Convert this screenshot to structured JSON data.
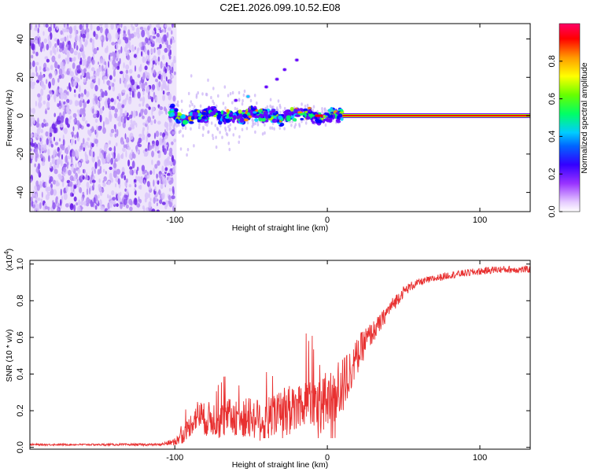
{
  "title": "C2E1.2026.099.10.52.E08",
  "spectrogram": {
    "chart_data": {
      "type": "heatmap",
      "xlabel": "Height of straight line (km)",
      "ylabel": "Frequency (Hz)",
      "xlim": [
        -195,
        133
      ],
      "ylim": [
        -50,
        48
      ],
      "x_ticks": [
        "-100",
        "0",
        "100"
      ],
      "y_ticks": [
        "-40",
        "-20",
        "0",
        "20",
        "40"
      ],
      "noise_region_x": [
        -195,
        -103
      ],
      "signal_region_x": [
        -103,
        10
      ],
      "carrier_region_x": [
        10,
        133
      ],
      "carrier_frequency_hz": 0,
      "branch_frequency_hz": [
        {
          "x": -60,
          "f": 8
        },
        {
          "x": -52,
          "f": 10
        },
        {
          "x": -40,
          "f": 15
        },
        {
          "x": -33,
          "f": 19
        },
        {
          "x": -28,
          "f": 24
        },
        {
          "x": -20,
          "f": 29
        }
      ]
    },
    "colorbar": {
      "label": "Normalized spectral amplitude",
      "range": [
        0,
        1
      ],
      "ticks": [
        "0.0",
        "0.2",
        "0.4",
        "0.6",
        "0.8"
      ],
      "colors": [
        "#ffffff",
        "#cc99ff",
        "#6600ff",
        "#0000ff",
        "#00ccff",
        "#00ff66",
        "#99ff00",
        "#ffff00",
        "#ff8800",
        "#ff0000",
        "#ff0066"
      ]
    }
  },
  "snr": {
    "chart_data": {
      "type": "line",
      "xlabel": "Height of straight line (km)",
      "ylabel": "SNR (10 * v/v)",
      "y_multiplier": "(x10",
      "y_multiplier_exp": "4",
      "xlim": [
        -195,
        133
      ],
      "ylim": [
        -0.01,
        1.02
      ],
      "x_ticks": [
        "-100",
        "0",
        "100"
      ],
      "y_ticks": [
        "0.0",
        "0.2",
        "0.4",
        "0.6",
        "0.8",
        "1.0"
      ],
      "series": [
        {
          "name": "SNR",
          "color": "#e83030",
          "x": [
            -195,
            -160,
            -130,
            -110,
            -100,
            -95,
            -90,
            -85,
            -80,
            -75,
            -70,
            -65,
            -60,
            -55,
            -50,
            -45,
            -40,
            -35,
            -30,
            -25,
            -20,
            -15,
            -10,
            -5,
            0,
            5,
            10,
            15,
            20,
            25,
            30,
            35,
            40,
            45,
            50,
            55,
            60,
            70,
            80,
            90,
            100,
            110,
            120,
            133
          ],
          "values": [
            0.015,
            0.015,
            0.015,
            0.015,
            0.03,
            0.06,
            0.12,
            0.18,
            0.15,
            0.16,
            0.14,
            0.16,
            0.17,
            0.15,
            0.17,
            0.15,
            0.16,
            0.18,
            0.2,
            0.19,
            0.22,
            0.25,
            0.28,
            0.22,
            0.26,
            0.3,
            0.33,
            0.42,
            0.5,
            0.58,
            0.63,
            0.68,
            0.75,
            0.8,
            0.85,
            0.88,
            0.9,
            0.92,
            0.94,
            0.95,
            0.96,
            0.97,
            0.97,
            0.97
          ],
          "noise_amplitude": [
            0.005,
            0.005,
            0.006,
            0.006,
            0.02,
            0.04,
            0.06,
            0.08,
            0.09,
            0.1,
            0.1,
            0.1,
            0.11,
            0.11,
            0.12,
            0.12,
            0.12,
            0.12,
            0.13,
            0.13,
            0.13,
            0.14,
            0.15,
            0.15,
            0.16,
            0.16,
            0.16,
            0.12,
            0.1,
            0.08,
            0.06,
            0.05,
            0.04,
            0.04,
            0.03,
            0.025,
            0.02,
            0.02,
            0.02,
            0.02,
            0.02,
            0.02,
            0.02,
            0.02
          ]
        }
      ]
    }
  }
}
